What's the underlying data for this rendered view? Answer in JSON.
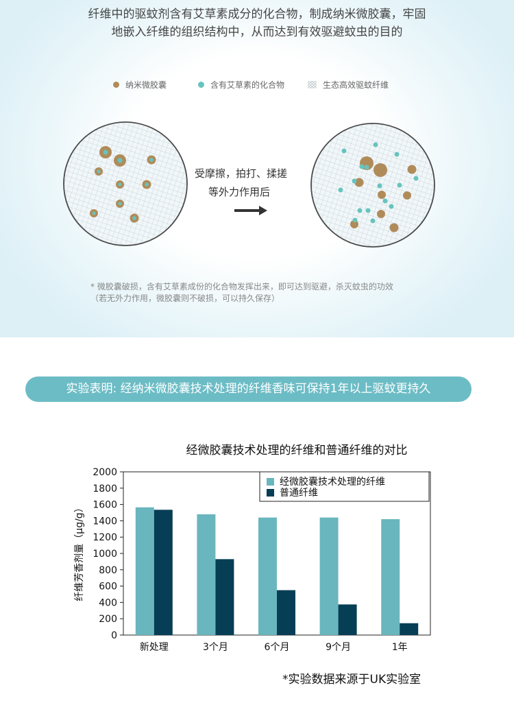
{
  "intro": {
    "line1": "纤维中的驱蚊剂含有艾草素成分的化合物，制成纳米微胶囊，牢固",
    "line2": "地嵌入纤维的组织结构中，从而达到有效驱避蚊虫的目的"
  },
  "diagram_legend": [
    {
      "label": "纳米微胶囊",
      "marker": "dot",
      "color": "#b08b5a"
    },
    {
      "label": "含有艾草素的化合物",
      "marker": "dot",
      "color": "#66c4be"
    },
    {
      "label": "生态高效驱蚊纤维",
      "marker": "hatch",
      "color": "#c8cdd0"
    }
  ],
  "diagram": {
    "action_line1": "受摩擦，拍打、揉搓",
    "action_line2": "等外力作用后",
    "arrow_icon": "arrow-right-icon"
  },
  "note": {
    "line1": "* 微胶囊破损，含有艾草素成份的化合物发挥出来，即可达到驱避，杀灭蚊虫的功效",
    "line2": "（若无外力作用，微胶囊则不破损，可以持久保存）"
  },
  "banner": {
    "text": "实验表明: 经纳米微胶囊技术处理的纤维香味可保持1年以上驱蚊更持久",
    "color": "#6cbcc5"
  },
  "chart_data": {
    "type": "bar",
    "title": "经微胶囊技术处理的纤维和普通纤维的对比",
    "ylabel": "纤维芳香剂量（μg/g）",
    "xlabel": "",
    "categories": [
      "新处理",
      "3个月",
      "6个月",
      "9个月",
      "1年"
    ],
    "series": [
      {
        "name": "经微胶囊技术处理的纤维",
        "color": "#6ab6be",
        "values": [
          1565,
          1480,
          1440,
          1440,
          1420
        ]
      },
      {
        "name": "普通纤维",
        "color": "#063e55",
        "values": [
          1535,
          930,
          550,
          375,
          145
        ]
      }
    ],
    "ylim": [
      0,
      2000
    ],
    "yticks": [
      "0",
      "200",
      "400",
      "600",
      "800",
      "1000",
      "1200",
      "1400",
      "1600",
      "1800",
      "2000"
    ],
    "grid": false,
    "legend_position": "top-right"
  },
  "source_note": "*实验数据来源于UK实验室"
}
